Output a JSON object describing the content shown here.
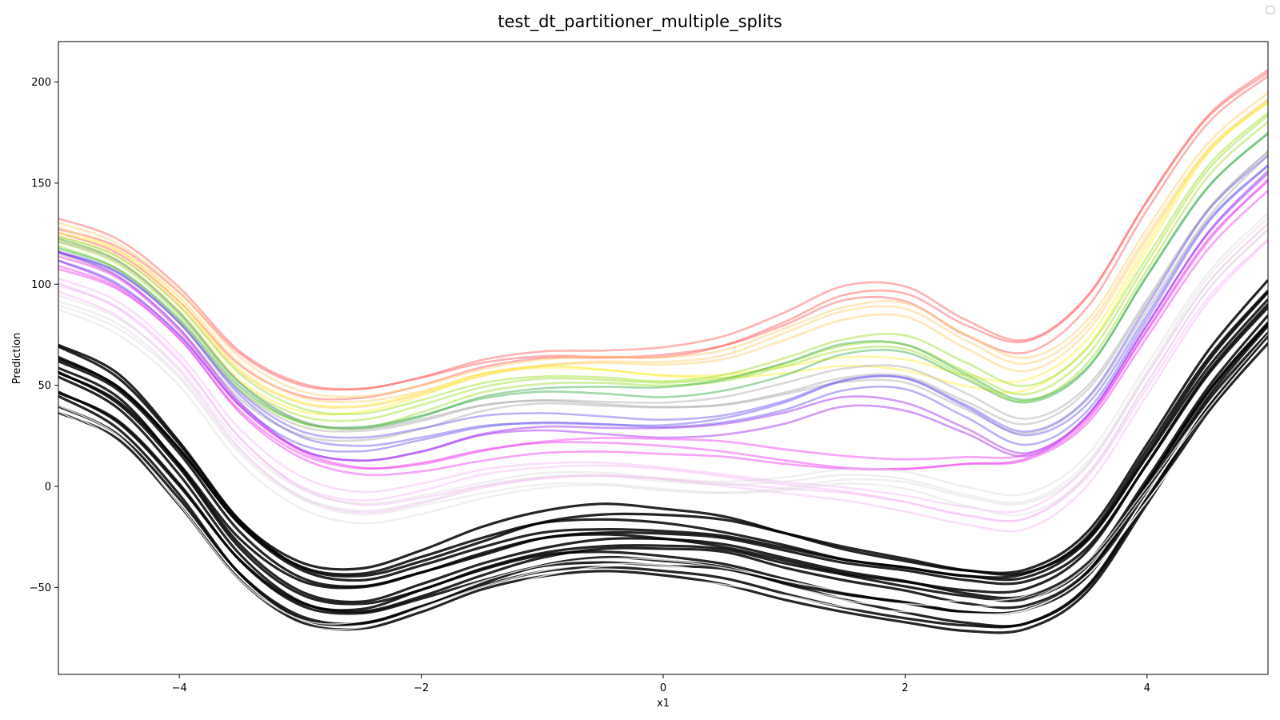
{
  "chart_data": {
    "type": "line",
    "title": "test_dt_partitioner_multiple_splits",
    "xlabel": "x1",
    "ylabel": "Prediction",
    "xlim": [
      -5,
      5
    ],
    "ylim": [
      -93,
      220
    ],
    "xticks": [
      -4,
      -2,
      0,
      2,
      4
    ],
    "yticks": [
      -50,
      0,
      50,
      100,
      150,
      200
    ],
    "xtick_labels": [
      "−4",
      "−2",
      "0",
      "2",
      "4"
    ],
    "ytick_labels": [
      "−50",
      "0",
      "50",
      "100",
      "150",
      "200"
    ],
    "grid": false,
    "legend": "empty box, top-right",
    "x": [
      -5,
      -4.5,
      -4,
      -3.5,
      -3,
      -2.5,
      -2,
      -1.5,
      -1,
      -0.5,
      0,
      0.5,
      1,
      1.5,
      2,
      2.5,
      3,
      3.5,
      4,
      4.5,
      5
    ],
    "bundles": [
      {
        "color": "#ff5555",
        "count": 3,
        "values": [
          128,
          118,
          95,
          64,
          49,
          47,
          53,
          61,
          65,
          65,
          66,
          71,
          82,
          95,
          95,
          79,
          70,
          92,
          140,
          182,
          205
        ]
      },
      {
        "color": "#ffcc66",
        "count": 3,
        "values": [
          126,
          116,
          93,
          61,
          45,
          43,
          49,
          57,
          61,
          62,
          61,
          64,
          74,
          85,
          87,
          72,
          61,
          80,
          126,
          168,
          193
        ]
      },
      {
        "color": "#ffee33",
        "count": 2,
        "values": [
          124,
          114,
          89,
          55,
          39,
          38,
          45,
          55,
          59,
          58,
          55,
          55,
          58,
          62,
          60,
          52,
          50,
          70,
          118,
          165,
          190
        ]
      },
      {
        "color": "#99dd22",
        "count": 3,
        "values": [
          122,
          111,
          86,
          52,
          35,
          32,
          39,
          48,
          52,
          52,
          51,
          54,
          62,
          71,
          72,
          58,
          46,
          64,
          110,
          155,
          182
        ]
      },
      {
        "color": "#33aa44",
        "count": 2,
        "values": [
          120,
          109,
          84,
          50,
          32,
          29,
          35,
          44,
          48,
          48,
          47,
          50,
          58,
          68,
          68,
          54,
          42,
          58,
          104,
          148,
          175
        ]
      },
      {
        "color": "#aaaaaa",
        "count": 3,
        "values": [
          118,
          107,
          82,
          47,
          29,
          26,
          31,
          39,
          42,
          41,
          40,
          42,
          48,
          55,
          55,
          42,
          30,
          46,
          90,
          135,
          165
        ]
      },
      {
        "color": "#6655ee",
        "count": 3,
        "values": [
          115,
          104,
          79,
          44,
          24,
          20,
          25,
          31,
          33,
          32,
          31,
          34,
          41,
          51,
          52,
          38,
          24,
          40,
          85,
          132,
          160
        ]
      },
      {
        "color": "#9922ee",
        "count": 2,
        "values": [
          114,
          102,
          77,
          41,
          19,
          13,
          17,
          25,
          28,
          27,
          26,
          28,
          34,
          42,
          40,
          28,
          16,
          35,
          80,
          125,
          155
        ]
      },
      {
        "color": "#ee33ee",
        "count": 3,
        "values": [
          110,
          99,
          74,
          38,
          16,
          8,
          10,
          16,
          20,
          21,
          20,
          18,
          14,
          11,
          10,
          12,
          14,
          32,
          76,
          120,
          150
        ]
      },
      {
        "color": "#f3b8f3",
        "count": 4,
        "values": [
          100,
          88,
          62,
          24,
          0,
          -8,
          -4,
          3,
          7,
          8,
          6,
          3,
          0,
          -3,
          -8,
          -14,
          -16,
          5,
          50,
          95,
          125
        ]
      },
      {
        "color": "#dddddd",
        "count": 4,
        "values": [
          92,
          80,
          55,
          17,
          -6,
          -14,
          -10,
          -3,
          2,
          3,
          1,
          0,
          2,
          6,
          4,
          -4,
          -8,
          10,
          55,
          100,
          130
        ]
      },
      {
        "color": "#000000",
        "count": 14,
        "values": [
          55,
          40,
          8,
          -30,
          -52,
          -56,
          -48,
          -38,
          -30,
          -27,
          -28,
          -31,
          -38,
          -45,
          -50,
          -55,
          -55,
          -38,
          5,
          50,
          85
        ]
      },
      {
        "color": "#ffffff",
        "count": 4,
        "values": [
          38,
          22,
          -12,
          -50,
          -70,
          -72,
          -63,
          -52,
          -44,
          -40,
          -40,
          -43,
          -49,
          -55,
          -58,
          -60,
          -58,
          -42,
          -5,
          35,
          70
        ]
      }
    ]
  }
}
